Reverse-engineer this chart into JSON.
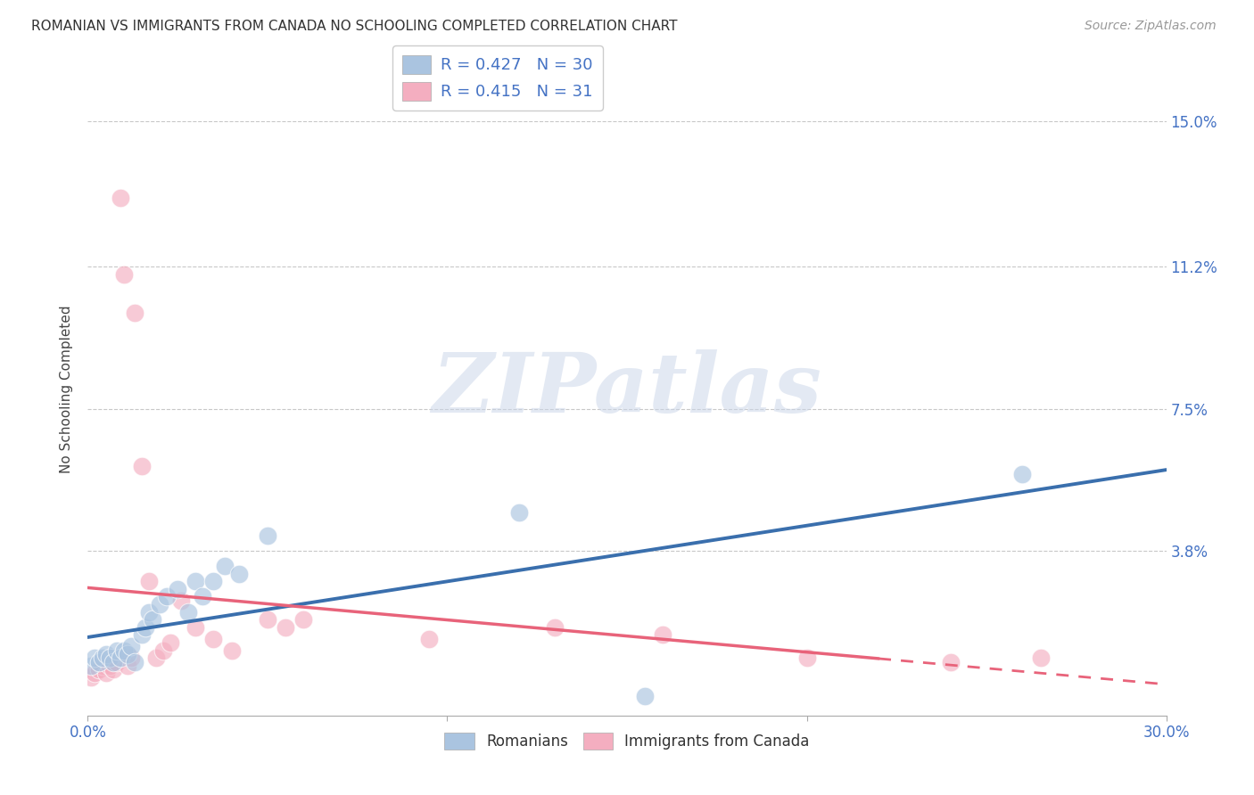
{
  "title": "ROMANIAN VS IMMIGRANTS FROM CANADA NO SCHOOLING COMPLETED CORRELATION CHART",
  "source": "Source: ZipAtlas.com",
  "ylabel": "No Schooling Completed",
  "xlim": [
    0.0,
    0.3
  ],
  "ylim": [
    -0.005,
    0.165
  ],
  "ytick_labels_right": [
    "15.0%",
    "11.2%",
    "7.5%",
    "3.8%"
  ],
  "ytick_vals_right": [
    0.15,
    0.112,
    0.075,
    0.038
  ],
  "blue_color": "#aac4e0",
  "pink_color": "#f4aec0",
  "blue_line_color": "#3a6fad",
  "pink_line_color": "#e8637a",
  "watermark_text": "ZIPatlas",
  "background_color": "#ffffff",
  "blue_scatter_x": [
    0.001,
    0.002,
    0.003,
    0.004,
    0.005,
    0.006,
    0.007,
    0.008,
    0.009,
    0.01,
    0.011,
    0.012,
    0.013,
    0.015,
    0.016,
    0.017,
    0.018,
    0.02,
    0.022,
    0.025,
    0.028,
    0.03,
    0.032,
    0.035,
    0.038,
    0.042,
    0.05,
    0.12,
    0.155,
    0.26
  ],
  "blue_scatter_y": [
    0.008,
    0.01,
    0.009,
    0.01,
    0.011,
    0.01,
    0.009,
    0.012,
    0.01,
    0.012,
    0.011,
    0.013,
    0.009,
    0.016,
    0.018,
    0.022,
    0.02,
    0.024,
    0.026,
    0.028,
    0.022,
    0.03,
    0.026,
    0.03,
    0.034,
    0.032,
    0.042,
    0.048,
    0.0,
    0.058
  ],
  "pink_scatter_x": [
    0.001,
    0.002,
    0.003,
    0.004,
    0.005,
    0.006,
    0.007,
    0.008,
    0.009,
    0.01,
    0.011,
    0.012,
    0.013,
    0.015,
    0.017,
    0.019,
    0.021,
    0.023,
    0.026,
    0.03,
    0.035,
    0.04,
    0.05,
    0.055,
    0.06,
    0.095,
    0.13,
    0.16,
    0.2,
    0.24,
    0.265
  ],
  "pink_scatter_y": [
    0.005,
    0.006,
    0.007,
    0.008,
    0.006,
    0.008,
    0.007,
    0.009,
    0.13,
    0.11,
    0.008,
    0.01,
    0.1,
    0.06,
    0.03,
    0.01,
    0.012,
    0.014,
    0.025,
    0.018,
    0.015,
    0.012,
    0.02,
    0.018,
    0.02,
    0.015,
    0.018,
    0.016,
    0.01,
    0.009,
    0.01
  ]
}
